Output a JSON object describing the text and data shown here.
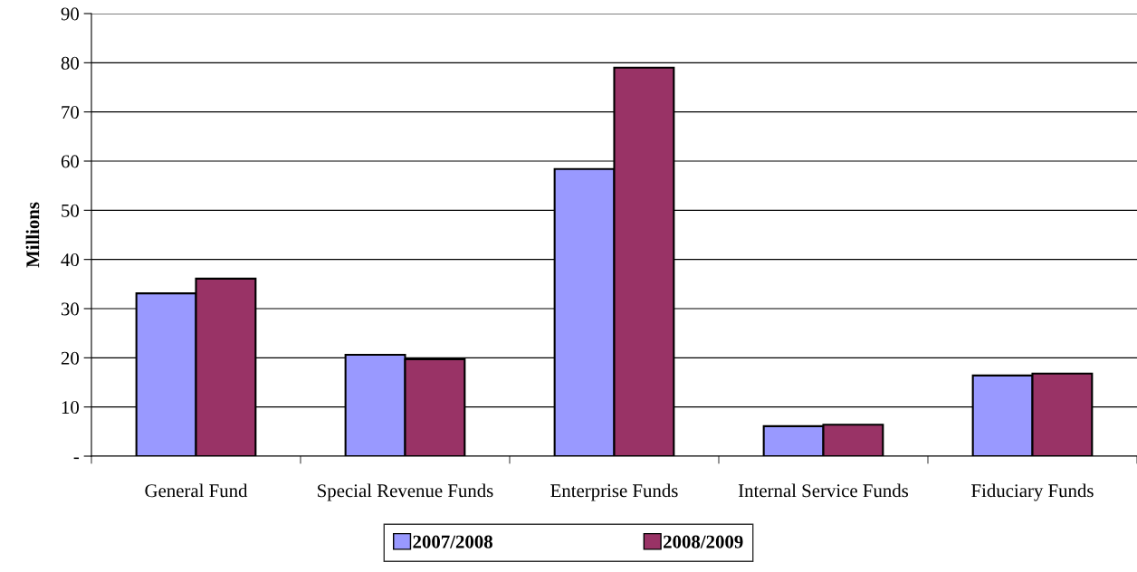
{
  "chart_data": {
    "type": "bar",
    "ylabel": "Millions",
    "categories": [
      "General Fund",
      "Special Revenue Funds",
      "Enterprise Funds",
      "Internal Service Funds",
      "Fiduciary Funds"
    ],
    "series": [
      {
        "name": "2007/2008",
        "color": "#9999ff",
        "values": [
          33.1,
          20.6,
          58.4,
          6.1,
          16.4
        ]
      },
      {
        "name": "2008/2009",
        "color": "#993366",
        "values": [
          36.1,
          19.7,
          79.0,
          6.4,
          16.8
        ]
      }
    ],
    "ylim": [
      0,
      90
    ],
    "yticks": [
      {
        "value": 0,
        "label": "-"
      },
      10,
      20,
      30,
      40,
      50,
      60,
      70,
      80,
      90
    ],
    "grid": "y",
    "legend": "bottom"
  }
}
